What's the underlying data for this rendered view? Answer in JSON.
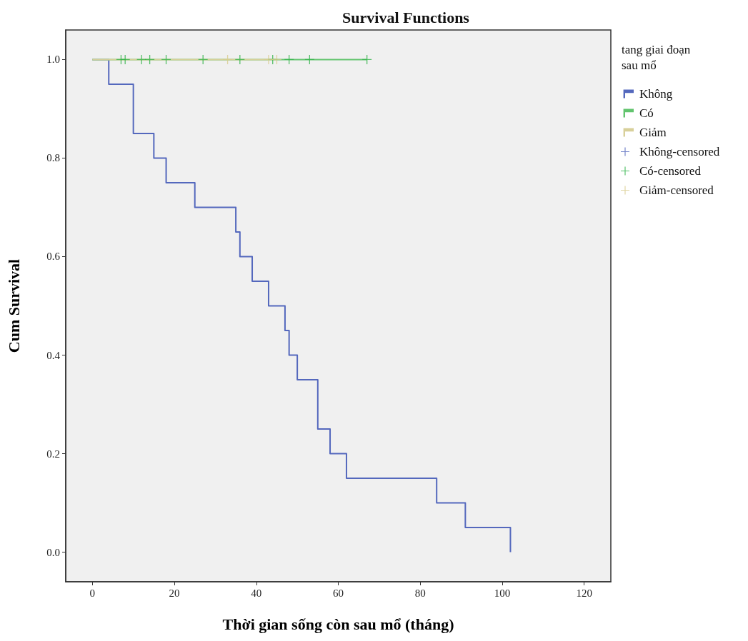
{
  "chart_data": {
    "type": "step",
    "title": "Survival Functions",
    "xlabel": "Thời gian sống còn sau mổ (tháng)",
    "ylabel": "Cum Survival",
    "legend_title": "tang giai đoạn sau mổ",
    "legend": "right",
    "grid": false,
    "xlim": [
      -6.5,
      126.5
    ],
    "xticks": [
      0,
      20,
      40,
      60,
      80,
      100,
      120
    ],
    "ylim": [
      -0.06,
      1.06
    ],
    "yticks": [
      {
        "value": 0,
        "label": "0.0"
      },
      {
        "value": 0.2,
        "label": "0.2"
      },
      {
        "value": 0.4,
        "label": "0.4"
      },
      {
        "value": 0.6,
        "label": "0.6"
      },
      {
        "value": 0.8,
        "label": "0.8"
      },
      {
        "value": 1,
        "label": "1.0"
      }
    ],
    "series": [
      {
        "name": "Không",
        "color": "#5468bd",
        "x": [
          0,
          4,
          10,
          15,
          18,
          25,
          35,
          36,
          39,
          43,
          47,
          48,
          50,
          55,
          58,
          62,
          84,
          91,
          102
        ],
        "values": [
          1,
          0.95,
          0.85,
          0.8,
          0.75,
          0.7,
          0.65,
          0.6,
          0.55,
          0.5,
          0.45,
          0.4,
          0.35,
          0.25,
          0.2,
          0.15,
          0.1,
          0.05,
          0
        ]
      },
      {
        "name": "Có",
        "color": "#62c46e",
        "x": [
          0,
          67
        ],
        "values": [
          1,
          1
        ]
      },
      {
        "name": "Giảm",
        "color": "#d8d09a",
        "x": [
          0,
          45
        ],
        "values": [
          1,
          1
        ]
      },
      {
        "name": "Không-censored",
        "type": "scatter",
        "marker": "cross",
        "color": "#5468bd"
      },
      {
        "name": "Có-censored",
        "type": "scatter",
        "marker": "cross",
        "color": "#2fb347",
        "x": [
          7,
          8,
          12,
          14,
          18,
          27,
          36,
          44,
          48,
          53,
          67
        ],
        "values": [
          1,
          1,
          1,
          1,
          1,
          1,
          1,
          1,
          1,
          1,
          1
        ]
      },
      {
        "name": "Giảm-censored",
        "type": "scatter",
        "marker": "cross",
        "color": "#d8cc8e",
        "x": [
          33,
          43,
          45
        ],
        "values": [
          1,
          1,
          1
        ]
      }
    ]
  }
}
